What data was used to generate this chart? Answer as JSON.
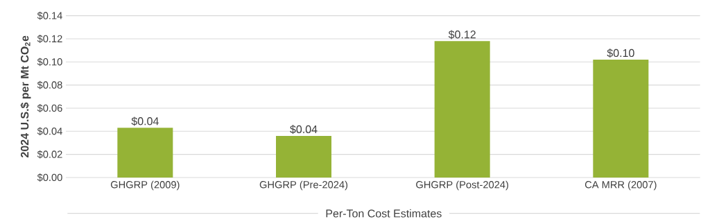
{
  "chart_data": {
    "type": "bar",
    "xlabel": "Per-Ton Cost Estimates",
    "ylabel": "2024 U.S.$ per Mt CO$_{2}$e",
    "categories": [
      "GHGRP (2009)",
      "GHGRP (Pre-2024)",
      "GHGRP (Post-2024)",
      "CA MRR (2007)"
    ],
    "values": [
      0.043,
      0.036,
      0.118,
      0.102
    ],
    "value_labels": [
      "$0.04",
      "$0.04",
      "$0.12",
      "$0.10"
    ],
    "color": "#95b336",
    "ylim": [
      0,
      0.14
    ],
    "yticks": [
      {
        "value": 0,
        "label": "$0.00"
      },
      {
        "value": 0.02,
        "label": "$0.02"
      },
      {
        "value": 0.04,
        "label": "$0.04"
      },
      {
        "value": 0.06,
        "label": "$0.06"
      },
      {
        "value": 0.08,
        "label": "$0.08"
      },
      {
        "value": 0.1,
        "label": "$0.10"
      },
      {
        "value": 0.12,
        "label": "$0.12"
      },
      {
        "value": 0.14,
        "label": "$0.14"
      }
    ],
    "grid": "y"
  }
}
